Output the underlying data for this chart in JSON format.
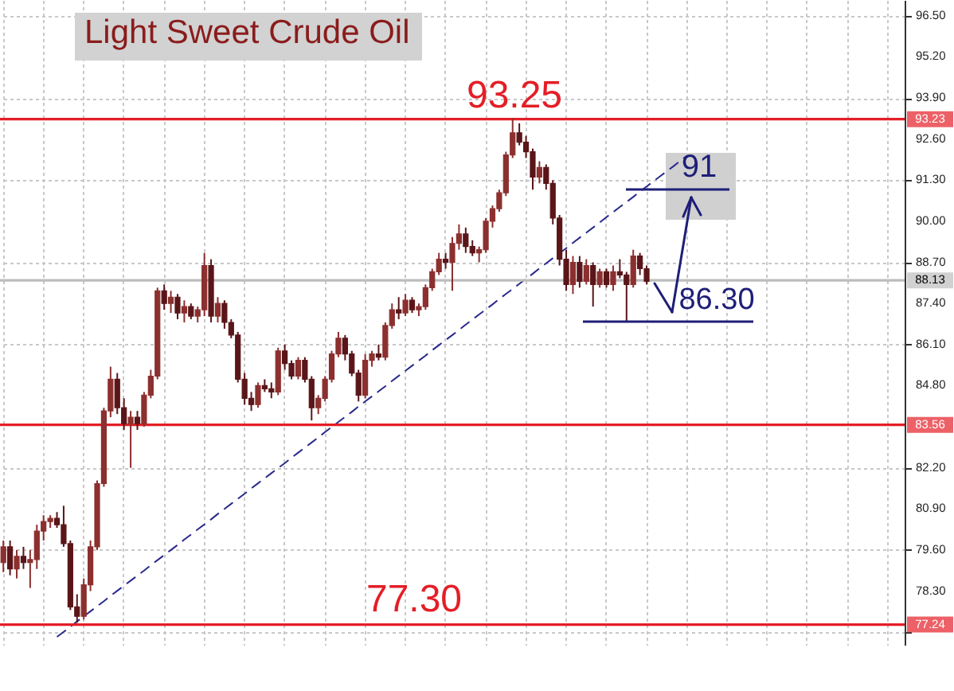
{
  "chart_data": {
    "type": "candlestick",
    "title": "Light Sweet Crude Oil",
    "categories": [
      null,
      null,
      null,
      null,
      null,
      null,
      null,
      null,
      null,
      null,
      null,
      null,
      null,
      null,
      null,
      null,
      null,
      null,
      null,
      null,
      null,
      null,
      null,
      null,
      null,
      null,
      null,
      null,
      null,
      null,
      null,
      null,
      null,
      null,
      null,
      null,
      null,
      null,
      null,
      null,
      null,
      null,
      null,
      null,
      null,
      null,
      null,
      null,
      null,
      null,
      null,
      null,
      null,
      null,
      null,
      null,
      null,
      null,
      null,
      null,
      null,
      null,
      null,
      null,
      null,
      null,
      null,
      null,
      null,
      null,
      null,
      null,
      null,
      null,
      null,
      null,
      null,
      null,
      null,
      null,
      null,
      null,
      null,
      null,
      null,
      null,
      null,
      null,
      null,
      null,
      null,
      null,
      null,
      null,
      null,
      null,
      null,
      null,
      null,
      null,
      null,
      null,
      null,
      null,
      null,
      null,
      null,
      null,
      null,
      null,
      null,
      null,
      null,
      null,
      null,
      null,
      null,
      null,
      null,
      null,
      null,
      null,
      null,
      null,
      null,
      null,
      null,
      null,
      null,
      null,
      null,
      null,
      null,
      null,
      null
    ],
    "series": [
      {
        "type": "line",
        "color": "#2a2a8c",
        "line_style": "dashed",
        "values": [
          null,
          null,
          null,
          null,
          null,
          null,
          null,
          null,
          76.85,
          77.01,
          77.17,
          77.34,
          77.5,
          77.66,
          77.82,
          77.98,
          78.15,
          78.31,
          78.47,
          78.63,
          78.79,
          78.95,
          79.12,
          79.28,
          79.44,
          79.6,
          79.76,
          79.93,
          80.09,
          80.25,
          80.41,
          80.57,
          80.74,
          80.9,
          81.06,
          81.22,
          81.38,
          81.55,
          81.71,
          81.87,
          82.03,
          82.19,
          82.35,
          82.52,
          82.68,
          82.84,
          83.0,
          83.16,
          83.33,
          83.49,
          83.65,
          83.81,
          83.97,
          84.14,
          84.3,
          84.46,
          84.62,
          84.78,
          84.95,
          85.11,
          85.27,
          85.43,
          85.59,
          85.75,
          85.92,
          86.08,
          86.24,
          86.4,
          86.56,
          86.73,
          86.89,
          87.05,
          87.21,
          87.37,
          87.54,
          87.7,
          87.86,
          88.02,
          88.18,
          88.34,
          88.51,
          88.67,
          88.83,
          88.99,
          89.15,
          89.32,
          89.48,
          89.64,
          89.8,
          89.96,
          90.13,
          90.29,
          90.45,
          90.61,
          90.77,
          90.94,
          91.1,
          91.26,
          91.42,
          91.58,
          91.74,
          91.91,
          92.07,
          null,
          null,
          null,
          null,
          null,
          null,
          null,
          null,
          null,
          null,
          null,
          null,
          null,
          null,
          null,
          null,
          null,
          null,
          null,
          null,
          null,
          null,
          null,
          null,
          null,
          null,
          null,
          null,
          null,
          null,
          null,
          null
        ]
      },
      {
        "ohlc": [
          [
            79.2,
            79.9,
            78.9,
            79.7
          ],
          [
            79.7,
            79.9,
            78.8,
            79.0
          ],
          [
            79.0,
            79.6,
            78.7,
            79.4
          ],
          [
            79.4,
            79.7,
            79.0,
            79.2
          ],
          [
            79.2,
            79.6,
            78.4,
            79.3
          ],
          [
            79.3,
            80.4,
            79.0,
            80.2
          ],
          [
            80.2,
            80.7,
            79.9,
            80.5
          ],
          [
            80.5,
            80.7,
            80.3,
            80.6
          ],
          [
            80.6,
            80.8,
            80.3,
            80.4
          ],
          [
            80.4,
            81.0,
            79.7,
            79.8
          ],
          [
            79.8,
            79.9,
            77.7,
            77.8
          ],
          [
            77.8,
            78.2,
            77.3,
            77.5
          ],
          [
            77.5,
            78.7,
            77.4,
            78.5
          ],
          [
            78.5,
            79.9,
            78.3,
            79.7
          ],
          [
            79.7,
            81.8,
            79.6,
            81.7
          ],
          [
            81.7,
            84.1,
            81.6,
            84.0
          ],
          [
            84.0,
            85.4,
            83.8,
            85.0
          ],
          [
            85.0,
            85.2,
            83.9,
            84.1
          ],
          [
            84.1,
            84.4,
            83.4,
            83.6
          ],
          [
            83.6,
            84.0,
            82.2,
            83.8
          ],
          [
            83.8,
            84.0,
            83.4,
            83.6
          ],
          [
            83.6,
            84.6,
            83.5,
            84.5
          ],
          [
            84.5,
            85.3,
            84.4,
            85.1
          ],
          [
            85.1,
            87.9,
            85.0,
            87.8
          ],
          [
            87.8,
            88.0,
            87.2,
            87.4
          ],
          [
            87.4,
            87.8,
            87.1,
            87.6
          ],
          [
            87.6,
            87.7,
            86.9,
            87.1
          ],
          [
            87.1,
            87.5,
            86.8,
            87.3
          ],
          [
            87.3,
            87.4,
            86.9,
            87.0
          ],
          [
            87.0,
            87.3,
            86.8,
            87.2
          ],
          [
            87.2,
            89.0,
            87.0,
            88.6
          ],
          [
            88.6,
            88.8,
            86.8,
            87.0
          ],
          [
            87.0,
            87.6,
            86.8,
            87.4
          ],
          [
            87.4,
            87.5,
            86.6,
            86.8
          ],
          [
            86.8,
            86.9,
            86.3,
            86.4
          ],
          [
            86.4,
            86.5,
            84.9,
            85.0
          ],
          [
            85.0,
            85.2,
            84.2,
            84.4
          ],
          [
            84.4,
            84.6,
            84.0,
            84.2
          ],
          [
            84.2,
            84.9,
            84.1,
            84.8
          ],
          [
            84.8,
            85.0,
            84.6,
            84.7
          ],
          [
            84.7,
            84.9,
            84.4,
            84.6
          ],
          [
            84.6,
            86.0,
            84.5,
            85.9
          ],
          [
            85.9,
            86.1,
            85.3,
            85.5
          ],
          [
            85.5,
            85.6,
            85.0,
            85.1
          ],
          [
            85.1,
            85.7,
            85.0,
            85.6
          ],
          [
            85.6,
            85.7,
            84.9,
            85.0
          ],
          [
            85.0,
            85.1,
            83.7,
            84.1
          ],
          [
            84.1,
            84.5,
            83.9,
            84.4
          ],
          [
            84.4,
            85.1,
            84.3,
            85.0
          ],
          [
            85.0,
            85.9,
            84.9,
            85.8
          ],
          [
            85.8,
            86.5,
            85.7,
            86.3
          ],
          [
            86.3,
            86.4,
            85.6,
            85.8
          ],
          [
            85.8,
            85.9,
            85.1,
            85.2
          ],
          [
            85.2,
            85.3,
            84.3,
            84.5
          ],
          [
            84.5,
            85.8,
            84.4,
            85.6
          ],
          [
            85.6,
            85.9,
            85.4,
            85.8
          ],
          [
            85.8,
            86.1,
            85.6,
            85.7
          ],
          [
            85.7,
            86.8,
            85.6,
            86.7
          ],
          [
            86.7,
            87.4,
            86.6,
            87.2
          ],
          [
            87.2,
            87.6,
            86.9,
            87.1
          ],
          [
            87.1,
            87.7,
            87.0,
            87.5
          ],
          [
            87.5,
            87.6,
            87.1,
            87.2
          ],
          [
            87.2,
            87.4,
            87.0,
            87.3
          ],
          [
            87.3,
            88.0,
            87.2,
            87.9
          ],
          [
            87.9,
            88.5,
            87.8,
            88.4
          ],
          [
            88.4,
            89.0,
            88.3,
            88.8
          ],
          [
            88.8,
            89.0,
            88.5,
            88.7
          ],
          [
            88.7,
            89.5,
            87.8,
            89.3
          ],
          [
            89.3,
            89.9,
            89.1,
            89.6
          ],
          [
            89.6,
            89.8,
            89.0,
            89.2
          ],
          [
            89.2,
            89.4,
            88.9,
            89.0
          ],
          [
            89.0,
            89.2,
            88.7,
            89.1
          ],
          [
            89.1,
            90.1,
            89.0,
            90.0
          ],
          [
            90.0,
            90.5,
            89.8,
            90.4
          ],
          [
            90.4,
            91.0,
            90.3,
            90.9
          ],
          [
            90.9,
            92.2,
            90.8,
            92.1
          ],
          [
            92.1,
            93.25,
            92.0,
            92.8
          ],
          [
            92.8,
            93.1,
            92.4,
            92.5
          ],
          [
            92.5,
            92.7,
            92.0,
            92.2
          ],
          [
            92.2,
            92.3,
            91.0,
            91.4
          ],
          [
            91.4,
            91.9,
            91.2,
            91.7
          ],
          [
            91.7,
            91.8,
            91.0,
            91.2
          ],
          [
            91.2,
            91.3,
            89.9,
            90.1
          ],
          [
            90.1,
            90.2,
            88.6,
            88.8
          ],
          [
            88.8,
            89.1,
            87.8,
            88.0
          ],
          [
            88.0,
            88.9,
            87.7,
            88.7
          ],
          [
            88.7,
            88.9,
            87.9,
            88.1
          ],
          [
            88.1,
            88.8,
            88.0,
            88.6
          ],
          [
            88.6,
            88.7,
            87.3,
            88.0
          ],
          [
            88.0,
            88.5,
            87.9,
            88.4
          ],
          [
            88.4,
            88.5,
            87.9,
            88.0
          ],
          [
            88.0,
            88.6,
            87.8,
            88.4
          ],
          [
            88.4,
            88.8,
            88.2,
            88.3
          ],
          [
            88.3,
            88.4,
            86.8,
            88.0
          ],
          [
            88.0,
            89.1,
            87.9,
            88.9
          ],
          [
            88.9,
            89.0,
            88.3,
            88.5
          ],
          [
            88.5,
            88.6,
            88.0,
            88.1
          ],
          null,
          null,
          null,
          null,
          null,
          null,
          null,
          null,
          null,
          null,
          null,
          null,
          null,
          null,
          null,
          null,
          null,
          null,
          null,
          null,
          null,
          null,
          null,
          null,
          null,
          null,
          null,
          null,
          null,
          null,
          null,
          null,
          null,
          null,
          null,
          null,
          null,
          null
        ],
        "colors": [
          "#8c2f2f",
          "#5a1518",
          "#8c2f2f",
          "#5a1518",
          "#8c2f2f",
          "#8c2f2f",
          "#8c2f2f",
          "#8c2f2f",
          "#5a1518",
          "#5a1518",
          "#5a1518",
          "#5a1518",
          "#8c2f2f",
          "#8c2f2f",
          "#8c2f2f",
          "#8c2f2f",
          "#8c2f2f",
          "#5a1518",
          "#5a1518",
          "#8c2f2f",
          "#5a1518",
          "#8c2f2f",
          "#8c2f2f",
          "#8c2f2f",
          "#5a1518",
          "#8c2f2f",
          "#5a1518",
          "#8c2f2f",
          "#5a1518",
          "#8c2f2f",
          "#8c2f2f",
          "#5a1518",
          "#8c2f2f",
          "#5a1518",
          "#5a1518",
          "#5a1518",
          "#5a1518",
          "#5a1518",
          "#8c2f2f",
          "#5a1518",
          "#5a1518",
          "#8c2f2f",
          "#5a1518",
          "#5a1518",
          "#8c2f2f",
          "#5a1518",
          "#5a1518",
          "#8c2f2f",
          "#8c2f2f",
          "#8c2f2f",
          "#8c2f2f",
          "#5a1518",
          "#5a1518",
          "#5a1518",
          "#8c2f2f",
          "#8c2f2f",
          "#5a1518",
          "#8c2f2f",
          "#8c2f2f",
          "#5a1518",
          "#8c2f2f",
          "#5a1518",
          "#8c2f2f",
          "#8c2f2f",
          "#8c2f2f",
          "#8c2f2f",
          "#5a1518",
          "#8c2f2f",
          "#8c2f2f",
          "#5a1518",
          "#5a1518",
          "#8c2f2f",
          "#8c2f2f",
          "#8c2f2f",
          "#8c2f2f",
          "#8c2f2f",
          "#8c2f2f",
          "#5a1518",
          "#5a1518",
          "#5a1518",
          "#8c2f2f",
          "#5a1518",
          "#5a1518",
          "#5a1518",
          "#5a1518",
          "#8c2f2f",
          "#5a1518",
          "#8c2f2f",
          "#5a1518",
          "#8c2f2f",
          "#5a1518",
          "#8c2f2f",
          "#5a1518",
          "#5a1518",
          "#8c2f2f",
          "#5a1518",
          "#5a1518",
          null,
          null,
          null,
          null,
          null,
          null,
          null,
          null,
          null,
          null,
          null,
          null,
          null,
          null,
          null,
          null,
          null,
          null,
          null,
          null,
          null,
          null,
          null,
          null,
          null,
          null,
          null,
          null,
          null,
          null,
          null,
          null,
          null,
          null,
          null,
          null,
          null,
          null
        ]
      }
    ],
    "ylim": [
      76.6,
      97.0
    ],
    "yticks": [
      {
        "value": 77,
        "label": null
      },
      {
        "value": 78.3,
        "label": "78.30"
      },
      {
        "value": 79.6,
        "label": "79.60"
      },
      {
        "value": 80.9,
        "label": "80.90"
      },
      {
        "value": 82.2,
        "label": "82.20"
      },
      {
        "value": 84.8,
        "label": "84.80"
      },
      {
        "value": 86.1,
        "label": "86.10"
      },
      {
        "value": 87.4,
        "label": "87.40"
      },
      {
        "value": 88.7,
        "label": "88.70"
      },
      {
        "value": 90,
        "label": "90.00"
      },
      {
        "value": 91.3,
        "label": "91.30"
      },
      {
        "value": 92.6,
        "label": "92.60"
      },
      {
        "value": 93.9,
        "label": "93.90"
      },
      {
        "value": 95.2,
        "label": "95.20"
      },
      {
        "value": 96.5,
        "label": "96.50"
      }
    ],
    "ref_lines": [
      {
        "axis": "y",
        "value": 93.23,
        "label": "93.23",
        "color": "#e41e26"
      },
      {
        "axis": "y",
        "value": 83.56,
        "label": "83.56",
        "color": "#e41e26"
      },
      {
        "axis": "y",
        "value": 77.24,
        "label": "77.24",
        "color": "#e41e26"
      },
      {
        "axis": "y",
        "value": 88.13,
        "label": "88.13",
        "color": "#bdbdbd"
      }
    ],
    "annotations": [
      {
        "text": "93.25",
        "y": 93.25
      },
      {
        "text": "77.30",
        "y": 77.3
      },
      "91",
      "86.30"
    ],
    "grid": true,
    "tick_labels": "y"
  }
}
